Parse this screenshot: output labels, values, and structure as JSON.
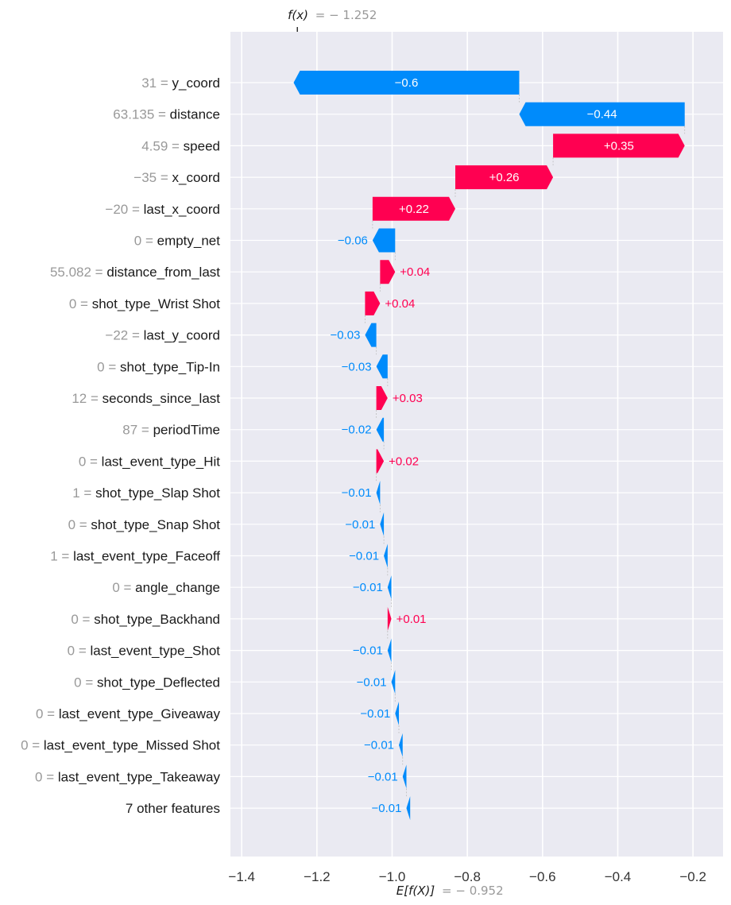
{
  "chart_data": {
    "type": "waterfall",
    "fx": {
      "label": "f(x)",
      "value": -1.252,
      "text": "= − 1.252"
    },
    "base": {
      "label": "E[f(X)]",
      "value": -0.952,
      "text": "= − 0.952"
    },
    "xlim": [
      -1.43,
      -0.12
    ],
    "xticks": [
      -1.4,
      -1.2,
      -1.0,
      -0.8,
      -0.6,
      -0.4,
      -0.2
    ],
    "xtick_labels": [
      "−1.4",
      "−1.2",
      "−1.0",
      "−0.8",
      "−0.6",
      "−0.4",
      "−0.2"
    ],
    "grid": true,
    "colors": {
      "positive": "#ff0051",
      "negative": "#008bfb",
      "background": "#eaeaf2",
      "feature_value": "#999999"
    },
    "features": [
      {
        "value": "31",
        "name": "y_coord",
        "contribution": -0.6,
        "label": "−0.6"
      },
      {
        "value": "63.135",
        "name": "distance",
        "contribution": -0.44,
        "label": "−0.44"
      },
      {
        "value": "4.59",
        "name": "speed",
        "contribution": 0.35,
        "label": "+0.35"
      },
      {
        "value": "−35",
        "name": "x_coord",
        "contribution": 0.26,
        "label": "+0.26"
      },
      {
        "value": "−20",
        "name": "last_x_coord",
        "contribution": 0.22,
        "label": "+0.22"
      },
      {
        "value": "0",
        "name": "empty_net",
        "contribution": -0.06,
        "label": "−0.06"
      },
      {
        "value": "55.082",
        "name": "distance_from_last",
        "contribution": 0.04,
        "label": "+0.04"
      },
      {
        "value": "0",
        "name": "shot_type_Wrist Shot",
        "contribution": 0.04,
        "label": "+0.04"
      },
      {
        "value": "−22",
        "name": "last_y_coord",
        "contribution": -0.03,
        "label": "−0.03"
      },
      {
        "value": "0",
        "name": "shot_type_Tip-In",
        "contribution": -0.03,
        "label": "−0.03"
      },
      {
        "value": "12",
        "name": "seconds_since_last",
        "contribution": 0.03,
        "label": "+0.03"
      },
      {
        "value": "87",
        "name": "periodTime",
        "contribution": -0.02,
        "label": "−0.02"
      },
      {
        "value": "0",
        "name": "last_event_type_Hit",
        "contribution": 0.02,
        "label": "+0.02"
      },
      {
        "value": "1",
        "name": "shot_type_Slap Shot",
        "contribution": -0.01,
        "label": "−0.01"
      },
      {
        "value": "0",
        "name": "shot_type_Snap Shot",
        "contribution": -0.01,
        "label": "−0.01"
      },
      {
        "value": "1",
        "name": "last_event_type_Faceoff",
        "contribution": -0.01,
        "label": "−0.01"
      },
      {
        "value": "0",
        "name": "angle_change",
        "contribution": -0.01,
        "label": "−0.01"
      },
      {
        "value": "0",
        "name": "shot_type_Backhand",
        "contribution": 0.01,
        "label": "+0.01"
      },
      {
        "value": "0",
        "name": "last_event_type_Shot",
        "contribution": -0.01,
        "label": "−0.01"
      },
      {
        "value": "0",
        "name": "shot_type_Deflected",
        "contribution": -0.01,
        "label": "−0.01"
      },
      {
        "value": "0",
        "name": "last_event_type_Giveaway",
        "contribution": -0.01,
        "label": "−0.01"
      },
      {
        "value": "0",
        "name": "last_event_type_Missed Shot",
        "contribution": -0.01,
        "label": "−0.01"
      },
      {
        "value": "0",
        "name": "last_event_type_Takeaway",
        "contribution": -0.01,
        "label": "−0.01"
      },
      {
        "value": "",
        "name": "7 other features",
        "contribution": -0.01,
        "label": "−0.01"
      }
    ]
  }
}
